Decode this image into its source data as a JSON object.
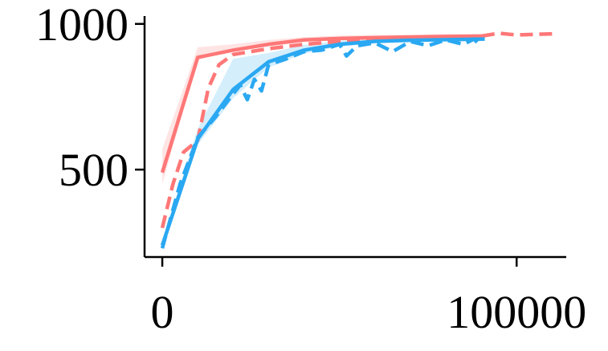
{
  "chart_data": {
    "type": "line",
    "title": "",
    "xlabel": "",
    "ylabel": "",
    "xlim": [
      -5000,
      114000
    ],
    "ylim": [
      200,
      1060
    ],
    "xticks": [
      0,
      100000
    ],
    "yticks": [
      500,
      1000
    ],
    "xtick_labels": [
      "0",
      "100000"
    ],
    "ytick_labels": [
      "500",
      "1000"
    ],
    "grid": false,
    "legend": "none",
    "colors": {
      "red": "#ff7777",
      "blue": "#2aa8f2"
    },
    "series": [
      {
        "color": "#ff7777",
        "dash": "solid",
        "x": [
          0,
          10000,
          20000,
          30000,
          40000,
          50000,
          60000,
          70000,
          80000,
          91000
        ],
        "y": [
          490,
          885,
          910,
          930,
          945,
          950,
          953,
          955,
          957,
          958
        ],
        "band_low": [
          450,
          880,
          905,
          925,
          940,
          945,
          948,
          950,
          952,
          953
        ],
        "band_high": [
          570,
          920,
          930,
          945,
          955,
          960,
          962,
          963,
          965,
          966
        ]
      },
      {
        "color": "#ff7777",
        "dash": "dashed",
        "x": [
          0,
          3000,
          6000,
          10000,
          13000,
          16000,
          20000,
          25000,
          30000,
          40000,
          50000,
          60000,
          70000,
          80000,
          90000,
          95000,
          100000,
          110000
        ],
        "y": [
          300,
          450,
          560,
          600,
          780,
          860,
          895,
          905,
          915,
          930,
          940,
          948,
          952,
          955,
          958,
          968,
          962,
          966
        ]
      },
      {
        "color": "#2aa8f2",
        "dash": "solid",
        "x": [
          0,
          10000,
          20000,
          30000,
          40000,
          50000,
          60000,
          70000,
          80000,
          91000
        ],
        "y": [
          240,
          605,
          775,
          870,
          910,
          930,
          940,
          944,
          946,
          948
        ],
        "band_low": [
          225,
          585,
          745,
          850,
          898,
          922,
          933,
          938,
          941,
          943
        ],
        "band_high": [
          255,
          640,
          880,
          900,
          928,
          942,
          948,
          952,
          954,
          955
        ]
      },
      {
        "color": "#2aa8f2",
        "dash": "dashed",
        "x": [
          0,
          5000,
          10000,
          15000,
          20000,
          22000,
          24000,
          26000,
          28000,
          30000,
          35000,
          40000,
          45000,
          50000,
          52000,
          55000,
          60000,
          65000,
          70000,
          75000,
          80000,
          85000,
          88000,
          90000
        ],
        "y": [
          230,
          450,
          610,
          680,
          760,
          790,
          740,
          810,
          770,
          860,
          880,
          905,
          910,
          930,
          890,
          925,
          935,
          905,
          940,
          925,
          945,
          930,
          948,
          920
        ]
      }
    ]
  }
}
